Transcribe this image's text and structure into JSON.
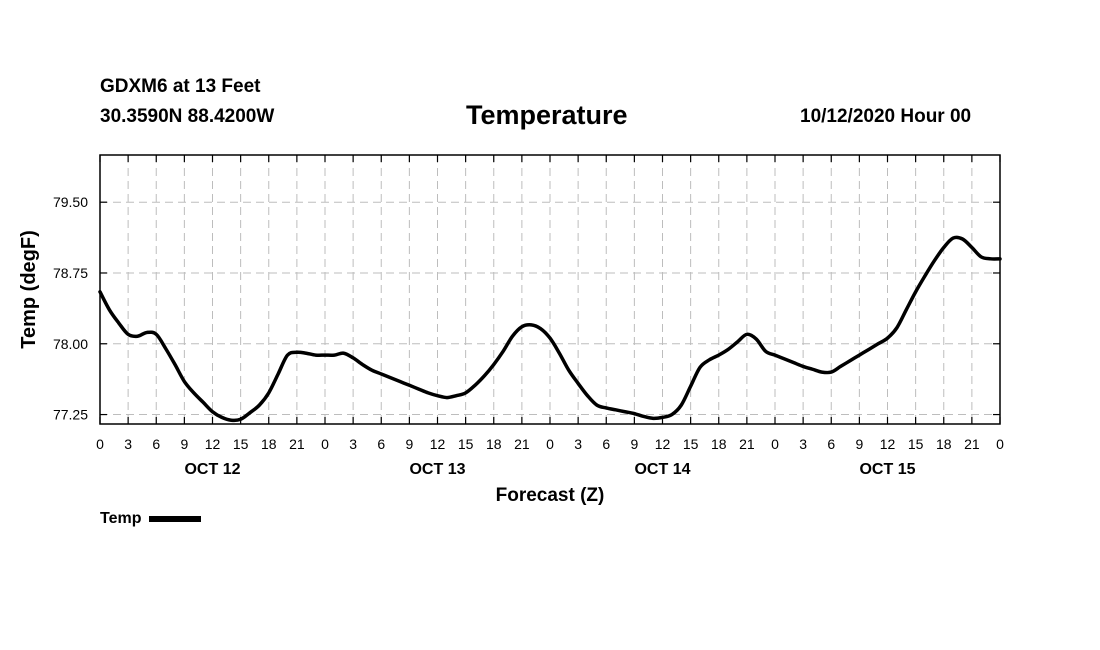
{
  "header": {
    "station": "GDXM6 at 13 Feet",
    "coords": "30.3590N 88.4200W",
    "title": "Temperature",
    "datetime": "10/12/2020 Hour 00"
  },
  "chart_data": {
    "type": "line",
    "title": "Temperature",
    "xlabel": "Forecast (Z)",
    "ylabel": "Temp (degF)",
    "xlim": [
      0,
      96
    ],
    "ylim": [
      77.15,
      80.0
    ],
    "yticks": [
      77.25,
      78.0,
      78.75,
      79.5
    ],
    "ytick_labels": [
      "77.25",
      "78.00",
      "78.75",
      "79.50"
    ],
    "xticks": [
      0,
      3,
      6,
      9,
      12,
      15,
      18,
      21,
      24,
      27,
      30,
      33,
      36,
      39,
      42,
      45,
      48,
      51,
      54,
      57,
      60,
      63,
      66,
      69,
      72,
      75,
      78,
      81,
      84,
      87,
      90,
      93,
      96
    ],
    "xtick_labels": [
      "0",
      "3",
      "6",
      "9",
      "12",
      "15",
      "18",
      "21",
      "0",
      "3",
      "6",
      "9",
      "12",
      "15",
      "18",
      "21",
      "0",
      "3",
      "6",
      "9",
      "12",
      "15",
      "18",
      "21",
      "0",
      "3",
      "6",
      "9",
      "12",
      "15",
      "18",
      "21",
      "0"
    ],
    "day_labels": [
      {
        "label": "OCT 12",
        "hour": 12
      },
      {
        "label": "OCT 13",
        "hour": 36
      },
      {
        "label": "OCT 14",
        "hour": 60
      },
      {
        "label": "OCT 15",
        "hour": 84
      }
    ],
    "grid": true,
    "legend_position": "bottom-left",
    "series": [
      {
        "name": "Temp",
        "color": "#000000",
        "x": [
          0,
          1,
          2,
          3,
          4,
          5,
          6,
          7,
          8,
          9,
          10,
          11,
          12,
          13,
          14,
          15,
          16,
          17,
          18,
          19,
          20,
          21,
          22,
          23,
          24,
          25,
          26,
          27,
          28,
          29,
          30,
          31,
          32,
          33,
          34,
          35,
          36,
          37,
          38,
          39,
          40,
          41,
          42,
          43,
          44,
          45,
          46,
          47,
          48,
          49,
          50,
          51,
          52,
          53,
          54,
          55,
          56,
          57,
          58,
          59,
          60,
          61,
          62,
          63,
          64,
          65,
          66,
          67,
          68,
          69,
          70,
          71,
          72,
          73,
          74,
          75,
          76,
          77,
          78,
          79,
          80,
          81,
          82,
          83,
          84,
          85,
          86,
          87,
          88,
          89,
          90,
          91,
          92,
          93,
          94,
          95,
          96
        ],
        "y": [
          78.55,
          78.36,
          78.22,
          78.1,
          78.08,
          78.12,
          78.1,
          77.95,
          77.78,
          77.6,
          77.48,
          77.38,
          77.28,
          77.22,
          77.19,
          77.2,
          77.27,
          77.35,
          77.48,
          77.68,
          77.88,
          77.91,
          77.9,
          77.88,
          77.88,
          77.88,
          77.9,
          77.85,
          77.78,
          77.72,
          77.68,
          77.64,
          77.6,
          77.56,
          77.52,
          77.48,
          77.45,
          77.43,
          77.45,
          77.48,
          77.56,
          77.66,
          77.78,
          77.92,
          78.08,
          78.18,
          78.2,
          78.16,
          78.06,
          77.9,
          77.72,
          77.58,
          77.45,
          77.35,
          77.32,
          77.3,
          77.28,
          77.26,
          77.23,
          77.21,
          77.22,
          77.25,
          77.35,
          77.55,
          77.75,
          77.83,
          77.88,
          77.94,
          78.02,
          78.1,
          78.05,
          77.92,
          77.88,
          77.84,
          77.8,
          77.76,
          77.73,
          77.7,
          77.7,
          77.76,
          77.82,
          77.88,
          77.94,
          78.0,
          78.06,
          78.17,
          78.36,
          78.55,
          78.72,
          78.88,
          79.02,
          79.12,
          79.11,
          79.02,
          78.92,
          78.9,
          78.9
        ]
      }
    ]
  },
  "legend": {
    "label": "Temp"
  }
}
